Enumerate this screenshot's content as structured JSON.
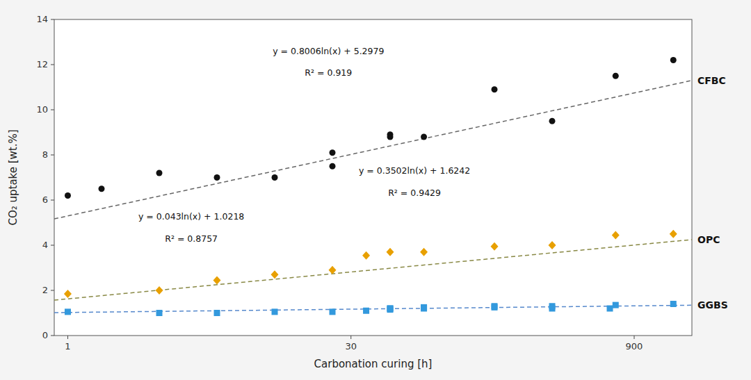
{
  "chart_data": {
    "type": "scatter",
    "xlabel": "Carbonation curing [h]",
    "ylabel": "CO₂ uptake [wt.%]",
    "log": "x",
    "grid": false,
    "xlim": [
      0.85,
      1800
    ],
    "xticks": [
      1,
      30,
      900
    ],
    "ylim": [
      0,
      14
    ],
    "yticks": [
      0,
      2,
      4,
      6,
      8,
      10,
      12,
      14
    ],
    "series": [
      {
        "name": "CFBC",
        "type": "scatter",
        "marker": "circle",
        "color": "#111111",
        "x": [
          1,
          1.5,
          3,
          6,
          12,
          24,
          24,
          48,
          48,
          72,
          168,
          336,
          720,
          1440
        ],
        "values": [
          6.2,
          6.5,
          7.2,
          7.0,
          7.0,
          8.1,
          7.5,
          8.9,
          8.8,
          8.8,
          10.9,
          9.5,
          11.5,
          12.2
        ]
      },
      {
        "name": "OPC",
        "type": "scatter",
        "marker": "diamond",
        "color": "#E8A000",
        "x": [
          1,
          3,
          6,
          12,
          24,
          36,
          48,
          72,
          168,
          336,
          720,
          1440
        ],
        "values": [
          1.85,
          2.0,
          2.45,
          2.7,
          2.9,
          3.55,
          3.7,
          3.7,
          3.95,
          4.0,
          4.45,
          4.5
        ]
      },
      {
        "name": "GGBS",
        "type": "scatter",
        "marker": "square",
        "color": "#3399DD",
        "x": [
          1,
          3,
          6,
          12,
          24,
          36,
          48,
          48,
          48,
          72,
          72,
          168,
          168,
          336,
          336,
          672,
          720,
          1440
        ],
        "values": [
          1.05,
          1.0,
          1.0,
          1.05,
          1.05,
          1.1,
          1.15,
          1.2,
          1.2,
          1.2,
          1.25,
          1.25,
          1.3,
          1.2,
          1.3,
          1.2,
          1.35,
          1.4
        ]
      },
      {
        "type": "line",
        "line_style": "dashed",
        "color": "#666666",
        "x": [
          0.85,
          1800
        ],
        "values": [
          5.167787,
          11.298831
        ]
      },
      {
        "type": "line",
        "line_style": "dashed",
        "color": "#888844",
        "x": [
          0.85,
          1800
        ],
        "values": [
          1.567286,
          4.249139
        ]
      },
      {
        "type": "line",
        "line_style": "dashed",
        "color": "#5588CC",
        "x": [
          0.85,
          1800
        ],
        "values": [
          1.014812,
          1.344108
        ]
      }
    ],
    "annotations": [
      "y = 0.8006ln(x) + 5.2979",
      "R² = 0.919",
      "y = 0.3502ln(x) + 1.6242",
      "R² = 0.9429",
      "y = 0.043ln(x) + 1.0218",
      "R² = 0.8757"
    ]
  }
}
